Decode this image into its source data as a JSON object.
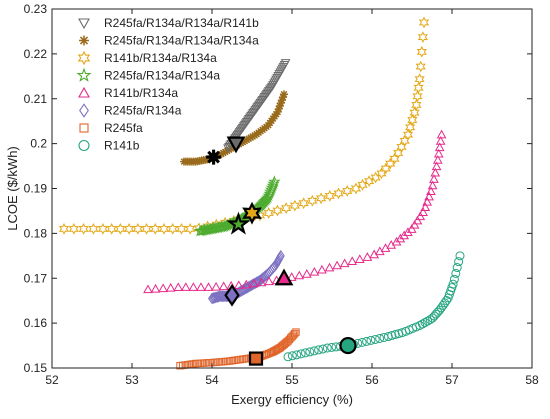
{
  "chart_data": {
    "type": "scatter",
    "xlabel": "Exergy efficiency (%)",
    "ylabel": "LCOE ($/kWh)",
    "xlim": [
      52,
      58
    ],
    "ylim": [
      0.15,
      0.23
    ],
    "xticks": [
      "52",
      "53",
      "54",
      "55",
      "56",
      "57",
      "58"
    ],
    "yticks": [
      "0.15",
      "0.16",
      "0.17",
      "0.18",
      "0.19",
      "0.2",
      "0.21",
      "0.22",
      "0.23"
    ],
    "grid": false,
    "legend_position": "top-left",
    "series": [
      {
        "name": "R245fa/R134a/R134a/R141b",
        "marker": "triangle-down",
        "color": "#6b6b6b",
        "x": [
          54.2,
          54.28,
          54.36,
          54.44,
          54.52,
          54.6,
          54.68,
          54.76,
          54.84,
          54.92
        ],
        "y": [
          0.199,
          0.201,
          0.203,
          0.205,
          0.207,
          0.209,
          0.211,
          0.213,
          0.2155,
          0.218
        ],
        "optimum": [
          54.3,
          0.2
        ]
      },
      {
        "name": "R245fa/R134a/R134a/R134a",
        "marker": "asterisk",
        "color": "#9a6b1c",
        "x": [
          53.65,
          53.8,
          53.95,
          54.1,
          54.25,
          54.4,
          54.55,
          54.7,
          54.82,
          54.9
        ],
        "y": [
          0.196,
          0.196,
          0.1965,
          0.1975,
          0.199,
          0.2005,
          0.202,
          0.204,
          0.207,
          0.211
        ],
        "optimum": [
          54.02,
          0.197
        ]
      },
      {
        "name": "R141b/R134a/R134a",
        "marker": "hexagram",
        "color": "#e3a817",
        "x": [
          52.15,
          52.6,
          53.0,
          53.4,
          53.8,
          54.2,
          54.6,
          55.0,
          55.4,
          55.8,
          56.1,
          56.3,
          56.45,
          56.55,
          56.6,
          56.65
        ],
        "y": [
          0.181,
          0.181,
          0.181,
          0.181,
          0.181,
          0.1825,
          0.184,
          0.186,
          0.188,
          0.19,
          0.193,
          0.197,
          0.202,
          0.208,
          0.215,
          0.227
        ],
        "optimum": [
          54.5,
          0.1845
        ]
      },
      {
        "name": "R245fa/R134a/R134a",
        "marker": "pentagram",
        "color": "#4dab2f",
        "x": [
          53.85,
          54.0,
          54.15,
          54.3,
          54.45,
          54.6,
          54.7,
          54.78
        ],
        "y": [
          0.1805,
          0.181,
          0.1815,
          0.1825,
          0.184,
          0.186,
          0.188,
          0.1915
        ],
        "optimum": [
          54.33,
          0.182
        ]
      },
      {
        "name": "R141b/R134a",
        "marker": "triangle-up",
        "color": "#e6298b",
        "x": [
          53.2,
          53.6,
          54.0,
          54.4,
          54.8,
          55.2,
          55.6,
          56.0,
          56.3,
          56.5,
          56.65,
          56.75,
          56.82,
          56.87
        ],
        "y": [
          0.1675,
          0.168,
          0.168,
          0.1685,
          0.1695,
          0.171,
          0.173,
          0.175,
          0.178,
          0.181,
          0.185,
          0.19,
          0.196,
          0.202
        ],
        "optimum": [
          54.9,
          0.17
        ]
      },
      {
        "name": "R245fa/R134a",
        "marker": "diamond",
        "color": "#7b70c2",
        "x": [
          54.0,
          54.1,
          54.2,
          54.3,
          54.4,
          54.5,
          54.6,
          54.7,
          54.8,
          54.86
        ],
        "y": [
          0.1655,
          0.166,
          0.166,
          0.1665,
          0.1675,
          0.1685,
          0.1695,
          0.171,
          0.173,
          0.175
        ],
        "optimum": [
          54.25,
          0.1662
        ]
      },
      {
        "name": "R245fa",
        "marker": "square",
        "color": "#e0652a",
        "x": [
          53.6,
          53.8,
          54.0,
          54.2,
          54.4,
          54.6,
          54.75,
          54.85,
          54.95,
          55.05
        ],
        "y": [
          0.1505,
          0.151,
          0.1512,
          0.1515,
          0.152,
          0.1525,
          0.1535,
          0.1545,
          0.156,
          0.158
        ],
        "optimum": [
          54.55,
          0.1521
        ]
      },
      {
        "name": "R141b",
        "marker": "circle",
        "color": "#26a581",
        "x": [
          54.95,
          55.2,
          55.45,
          55.7,
          55.95,
          56.2,
          56.4,
          56.6,
          56.75,
          56.85,
          56.95,
          57.02,
          57.1
        ],
        "y": [
          0.1525,
          0.1535,
          0.1545,
          0.155,
          0.156,
          0.157,
          0.158,
          0.1595,
          0.161,
          0.163,
          0.1655,
          0.169,
          0.175
        ],
        "optimum": [
          55.7,
          0.155
        ]
      }
    ]
  }
}
